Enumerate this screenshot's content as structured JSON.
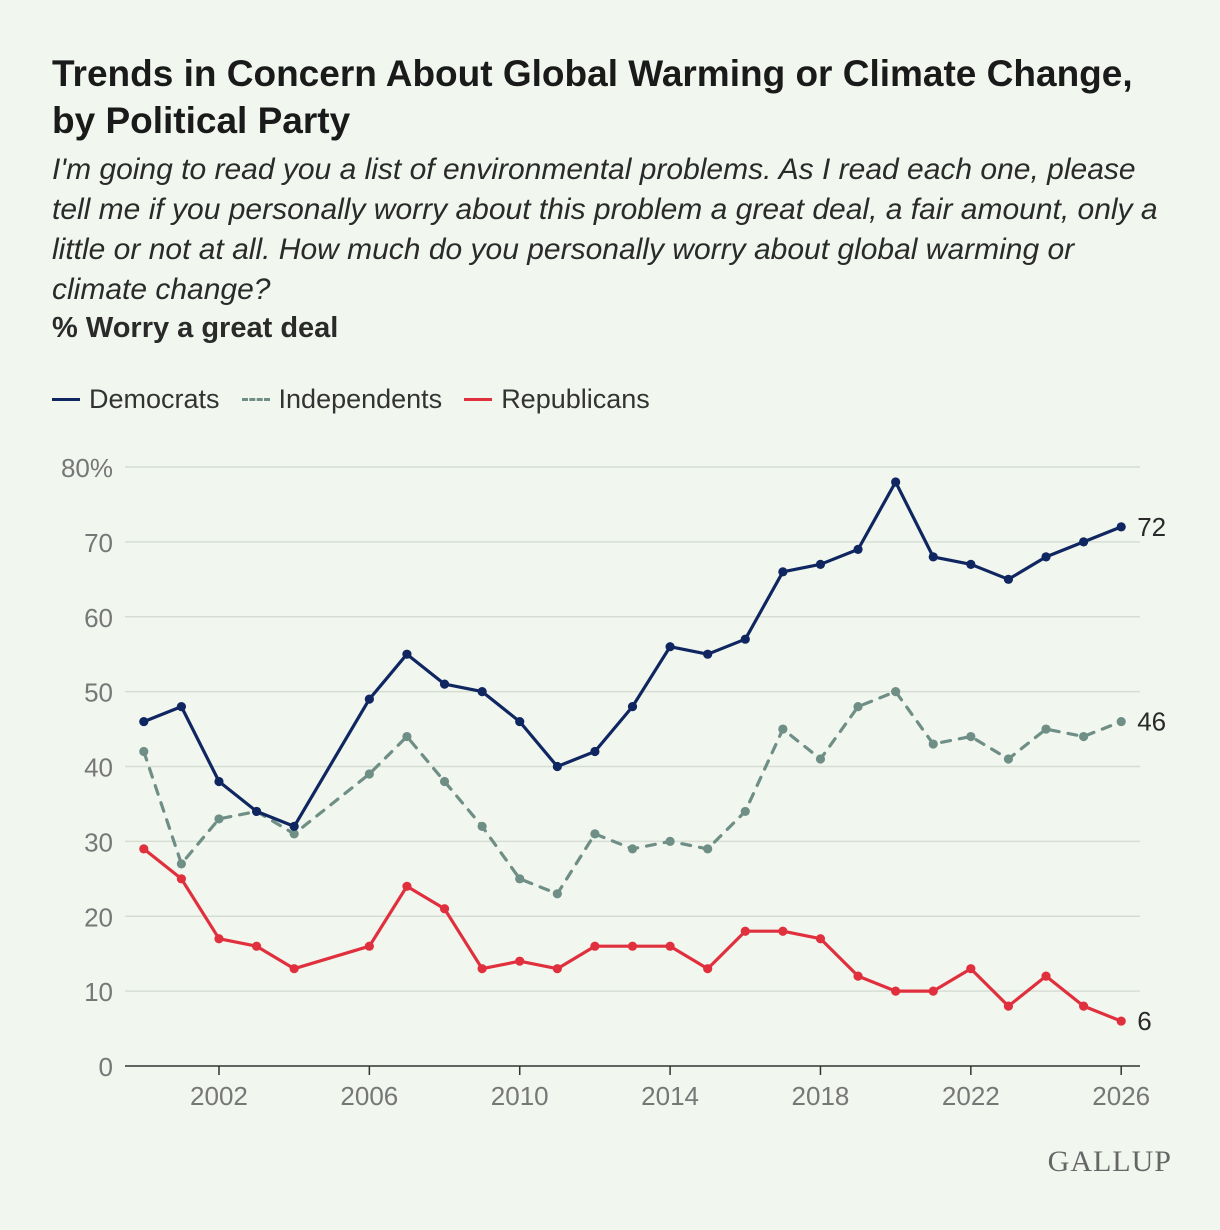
{
  "header": {
    "title": "Trends in Concern About Global Warming or Climate Change, by Political Party",
    "subtitle": "I'm going to read you a list of environmental problems. As I read each one, please tell me if you personally worry about this problem a great deal, a fair amount, only a little or not at all. How much do you personally worry about global warming or climate change?",
    "measure": "% Worry a great deal"
  },
  "legend": {
    "democrats": "Democrats",
    "independents": "Independents",
    "republicans": "Republicans"
  },
  "branding": {
    "logo": "GALLUP"
  },
  "colors": {
    "democrats": "#0f2660",
    "independents": "#6f8f86",
    "republicans": "#e0303e",
    "grid": "#d6ded4",
    "axis": "#333333",
    "tick_text": "#777777"
  },
  "chart_data": {
    "type": "line",
    "title": "Trends in Concern About Global Warming or Climate Change, by Political Party",
    "ylabel": "% Worry a great deal",
    "xlabel": "",
    "ylim": [
      0,
      80
    ],
    "xlim": [
      1999.5,
      2026.5
    ],
    "y_ticks": [
      0,
      10,
      20,
      30,
      40,
      50,
      60,
      70,
      80
    ],
    "y_tick_labels": [
      "0",
      "10",
      "20",
      "30",
      "40",
      "50",
      "60",
      "70",
      "80%"
    ],
    "x_ticks": [
      2002,
      2006,
      2010,
      2014,
      2018,
      2022,
      2026
    ],
    "x_tick_labels": [
      "2002",
      "2006",
      "2010",
      "2014",
      "2018",
      "2022",
      "2026"
    ],
    "grid": true,
    "legend_position": "top-left",
    "series": [
      {
        "name": "Democrats",
        "key": "democrats",
        "style": "solid",
        "end_label": "72",
        "points": [
          [
            2000,
            46
          ],
          [
            2001,
            48
          ],
          [
            2002,
            38
          ],
          [
            2003,
            34
          ],
          [
            2004,
            32
          ],
          [
            2006,
            49
          ],
          [
            2007,
            55
          ],
          [
            2008,
            51
          ],
          [
            2009,
            50
          ],
          [
            2010,
            46
          ],
          [
            2011,
            40
          ],
          [
            2012,
            42
          ],
          [
            2013,
            48
          ],
          [
            2014,
            56
          ],
          [
            2015,
            55
          ],
          [
            2016,
            57
          ],
          [
            2017,
            66
          ],
          [
            2018,
            67
          ],
          [
            2019,
            69
          ],
          [
            2020,
            78
          ],
          [
            2021,
            68
          ],
          [
            2022,
            67
          ],
          [
            2023,
            65
          ],
          [
            2024,
            68
          ],
          [
            2025,
            70
          ],
          [
            2026,
            72
          ]
        ]
      },
      {
        "name": "Independents",
        "key": "independents",
        "style": "dashed",
        "end_label": "46",
        "points": [
          [
            2000,
            42
          ],
          [
            2001,
            27
          ],
          [
            2002,
            33
          ],
          [
            2003,
            34
          ],
          [
            2004,
            31
          ],
          [
            2006,
            39
          ],
          [
            2007,
            44
          ],
          [
            2008,
            38
          ],
          [
            2009,
            32
          ],
          [
            2010,
            25
          ],
          [
            2011,
            23
          ],
          [
            2012,
            31
          ],
          [
            2013,
            29
          ],
          [
            2014,
            30
          ],
          [
            2015,
            29
          ],
          [
            2016,
            34
          ],
          [
            2017,
            45
          ],
          [
            2018,
            41
          ],
          [
            2019,
            48
          ],
          [
            2020,
            50
          ],
          [
            2021,
            43
          ],
          [
            2022,
            44
          ],
          [
            2023,
            41
          ],
          [
            2024,
            45
          ],
          [
            2025,
            44
          ],
          [
            2026,
            46
          ]
        ]
      },
      {
        "name": "Republicans",
        "key": "republicans",
        "style": "solid",
        "end_label": "6",
        "points": [
          [
            2000,
            29
          ],
          [
            2001,
            25
          ],
          [
            2002,
            17
          ],
          [
            2003,
            16
          ],
          [
            2004,
            13
          ],
          [
            2006,
            16
          ],
          [
            2007,
            24
          ],
          [
            2008,
            21
          ],
          [
            2009,
            13
          ],
          [
            2010,
            14
          ],
          [
            2011,
            13
          ],
          [
            2012,
            16
          ],
          [
            2013,
            16
          ],
          [
            2014,
            16
          ],
          [
            2015,
            13
          ],
          [
            2016,
            18
          ],
          [
            2017,
            18
          ],
          [
            2018,
            17
          ],
          [
            2019,
            12
          ],
          [
            2020,
            10
          ],
          [
            2021,
            10
          ],
          [
            2022,
            13
          ],
          [
            2023,
            8
          ],
          [
            2024,
            12
          ],
          [
            2025,
            8
          ],
          [
            2026,
            6
          ]
        ]
      }
    ]
  }
}
